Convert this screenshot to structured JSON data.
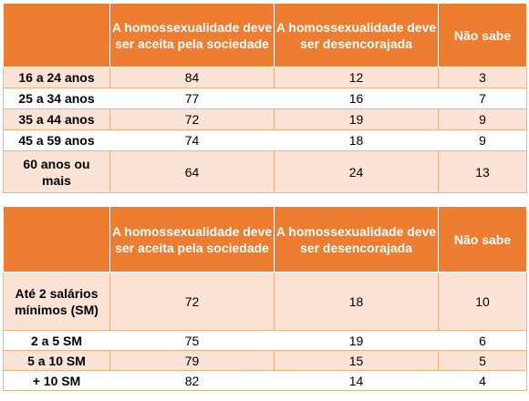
{
  "table_age": {
    "headers": [
      "",
      "A homossexualidade deve ser aceita pela sociedade",
      "A homossexualidade deve ser desencorajada",
      "Não sabe"
    ],
    "rows": [
      {
        "label": "16 a 24 anos",
        "values": [
          "84",
          "12",
          "3"
        ]
      },
      {
        "label": "25 a 34 anos",
        "values": [
          "77",
          "16",
          "7"
        ]
      },
      {
        "label": "35 a 44 anos",
        "values": [
          "72",
          "19",
          "9"
        ]
      },
      {
        "label": "45 a 59 anos",
        "values": [
          "74",
          "18",
          "9"
        ]
      },
      {
        "label": "60 anos ou mais",
        "values": [
          "64",
          "24",
          "13"
        ]
      }
    ]
  },
  "table_income": {
    "headers": [
      "",
      "A homossexualidade deve ser aceita pela sociedade",
      "A homossexualidade deve ser desencorajada",
      "Não sabe"
    ],
    "rows": [
      {
        "label": "Até 2 salários mínimos (SM)",
        "values": [
          "72",
          "18",
          "10"
        ]
      },
      {
        "label": "2 a 5 SM",
        "values": [
          "75",
          "19",
          "6"
        ]
      },
      {
        "label": "5 a 10 SM",
        "values": [
          "79",
          "15",
          "5"
        ]
      },
      {
        "label": "+ 10 SM",
        "values": [
          "82",
          "14",
          "4"
        ]
      }
    ]
  },
  "colors": {
    "header_bg": "#ED7D31",
    "band_bg": "#FBE4D5",
    "border": "#F4B083"
  }
}
